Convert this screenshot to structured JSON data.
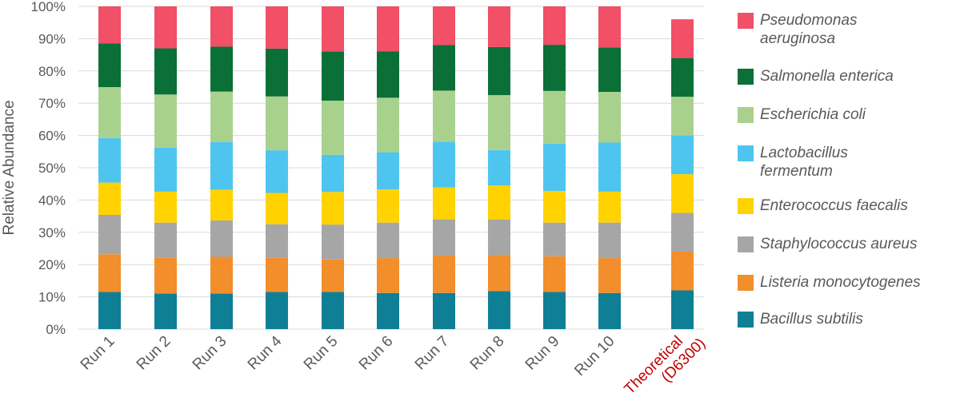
{
  "chart_data": {
    "type": "bar",
    "stacked": true,
    "ylabel": "Relative Abundance",
    "ylim": [
      0,
      100
    ],
    "yticks": [
      "0%",
      "10%",
      "20%",
      "30%",
      "40%",
      "50%",
      "60%",
      "70%",
      "80%",
      "90%",
      "100%"
    ],
    "grid": true,
    "legend_position": "right",
    "categories": [
      "Run 1",
      "Run 2",
      "Run 3",
      "Run 4",
      "Run 5",
      "Run 6",
      "Run 7",
      "Run 8",
      "Run 9",
      "Run 10",
      "Theoretical\n(D6300)"
    ],
    "highlight_category_color": "#c00000",
    "series": [
      {
        "name": "Bacillus subtilis",
        "color": "#0f7f96",
        "values": [
          11.5,
          11.0,
          11.0,
          11.5,
          11.5,
          11.2,
          11.2,
          11.8,
          11.5,
          11.2,
          12.0
        ]
      },
      {
        "name": "Listeria monocytogenes",
        "color": "#f28e2b",
        "values": [
          11.7,
          11.1,
          11.4,
          10.6,
          10.1,
          10.8,
          11.7,
          11.2,
          11.1,
          10.8,
          12.0
        ]
      },
      {
        "name": "Staphylococcus aureus",
        "color": "#a6a6a6",
        "values": [
          12.2,
          10.9,
          11.3,
          10.4,
          10.8,
          11.0,
          11.1,
          11.0,
          10.4,
          11.0,
          12.0
        ]
      },
      {
        "name": "Enterococcus faecalis",
        "color": "#ffd200",
        "values": [
          10.0,
          9.6,
          9.5,
          9.7,
          10.1,
          10.3,
          9.9,
          10.5,
          9.8,
          9.6,
          12.0
        ]
      },
      {
        "name": "Lactobacillus fermentum",
        "color": "#4dc5ef",
        "values": [
          13.8,
          13.6,
          14.8,
          13.2,
          11.5,
          11.5,
          14.2,
          11.0,
          14.7,
          15.2,
          12.0
        ]
      },
      {
        "name": "Escherichia coli",
        "color": "#a9d18e",
        "values": [
          15.8,
          16.5,
          15.6,
          16.7,
          16.8,
          16.9,
          15.8,
          17.0,
          16.3,
          15.7,
          12.0
        ]
      },
      {
        "name": "Salmonella enterica",
        "color": "#0a7038",
        "values": [
          13.5,
          14.3,
          13.9,
          14.8,
          15.2,
          14.4,
          14.1,
          14.9,
          14.3,
          13.8,
          12.0
        ]
      },
      {
        "name": "Pseudomonas aeruginosa",
        "color": "#f15066",
        "values": [
          11.5,
          13.0,
          12.5,
          13.1,
          14.0,
          13.9,
          12.0,
          12.6,
          11.9,
          12.7,
          12.0
        ]
      }
    ]
  }
}
